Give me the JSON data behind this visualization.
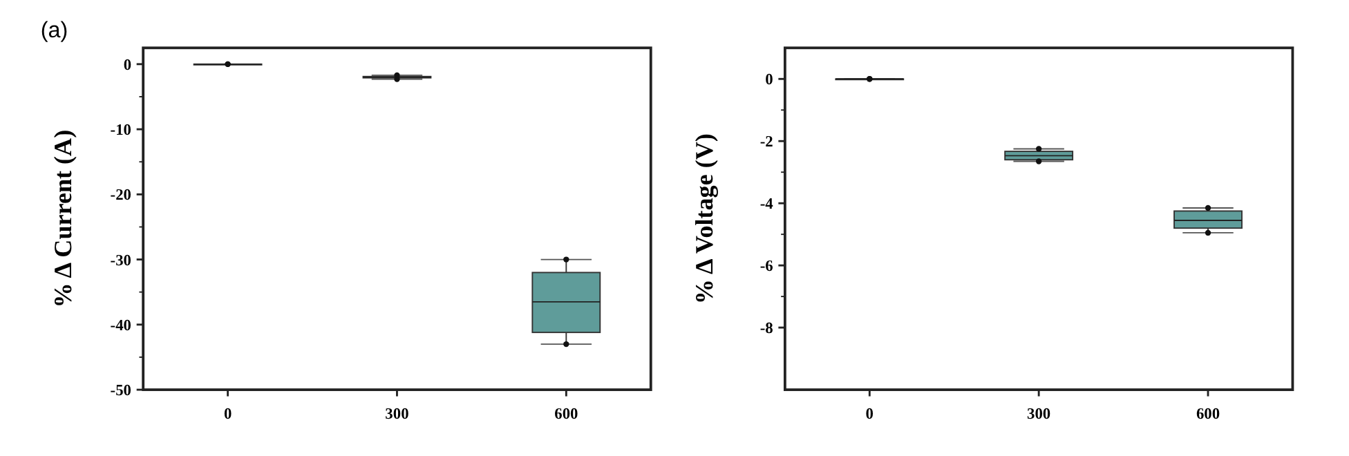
{
  "chart_data": [
    {
      "type": "box",
      "annotations": [
        "(a)"
      ],
      "ylabel": "% Δ Current (A)",
      "categories": [
        "0",
        "300",
        "600"
      ],
      "color": "#5f9c9a",
      "ylim": [
        -50,
        2.5
      ],
      "yticks": [
        0,
        -10,
        -20,
        -30,
        -40,
        -50
      ],
      "boxes": [
        {
          "low": 0,
          "q1": 0,
          "median": 0,
          "q3": 0,
          "high": 0
        },
        {
          "low": -2.3,
          "q1": -2.1,
          "median": -2,
          "q3": -1.9,
          "high": -1.7
        },
        {
          "low": -43,
          "q1": -41.2,
          "median": -36.5,
          "q3": -32,
          "high": -30
        }
      ],
      "series": [
        {
          "type": "scatter",
          "color": "#111111",
          "x": [
            "0",
            "0",
            "300",
            "300",
            "600",
            "600"
          ],
          "values": [
            0,
            0,
            -2.3,
            -1.7,
            -43,
            -30
          ]
        }
      ]
    },
    {
      "type": "box",
      "ylabel": "% Δ Voltage (V)",
      "categories": [
        "0",
        "300",
        "600"
      ],
      "color": "#5f9c9a",
      "ylim": [
        -10,
        1
      ],
      "yticks": [
        0,
        -2,
        -4,
        -6,
        -8
      ],
      "boxes": [
        {
          "low": 0,
          "q1": 0,
          "median": 0,
          "q3": 0,
          "high": 0
        },
        {
          "low": -2.65,
          "q1": -2.6,
          "median": -2.47,
          "q3": -2.33,
          "high": -2.25
        },
        {
          "low": -4.95,
          "q1": -4.8,
          "median": -4.55,
          "q3": -4.25,
          "high": -4.15
        }
      ],
      "series": [
        {
          "type": "scatter",
          "color": "#111111",
          "x": [
            "0",
            "0",
            "300",
            "300",
            "600",
            "600"
          ],
          "values": [
            0,
            0,
            -2.65,
            -2.25,
            -4.95,
            -4.15
          ]
        }
      ]
    }
  ]
}
